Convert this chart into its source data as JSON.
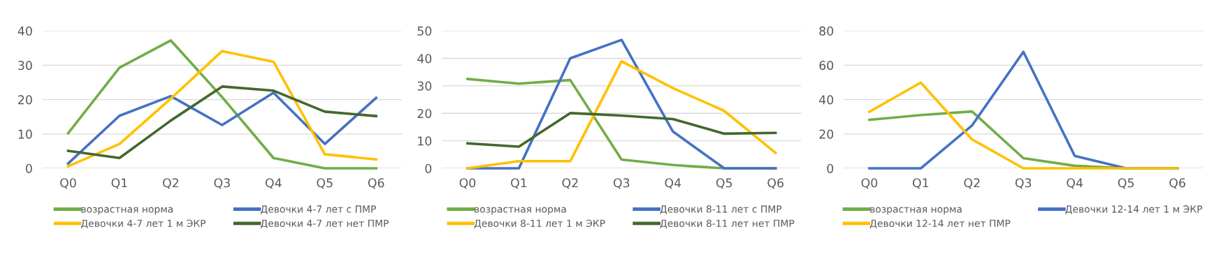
{
  "chart_data": [
    {
      "type": "line",
      "categories": [
        "Q0",
        "Q1",
        "Q2",
        "Q3",
        "Q4",
        "Q5",
        "Q6"
      ],
      "ylim": [
        0,
        40
      ],
      "yticks": [
        0,
        10,
        20,
        30,
        40
      ],
      "grid": "y",
      "legend": "bottom",
      "marker": "none",
      "line_style": "solid",
      "series": [
        {
          "name": "возрастная норма",
          "color": "#70ad47",
          "values": [
            10.2,
            29.3,
            37.2,
            20.7,
            3,
            0,
            0
          ]
        },
        {
          "name": "Девочки 4-7 лет с ПМР",
          "color": "#4472c4",
          "values": [
            1.4,
            15.3,
            21,
            12.6,
            22,
            7.1,
            20.5
          ]
        },
        {
          "name": "Девочки 4-7 лет 1 м ЭКР",
          "color": "#ffc000",
          "values": [
            0.6,
            7.1,
            20.3,
            34.1,
            31,
            4.1,
            2.6
          ]
        },
        {
          "name": "Девочки 4-7 лет нет ПМР",
          "color": "#43682b",
          "values": [
            5.1,
            3,
            13.9,
            23.8,
            22.6,
            16.5,
            15.2
          ]
        }
      ]
    },
    {
      "type": "line",
      "categories": [
        "Q0",
        "Q1",
        "Q2",
        "Q3",
        "Q4",
        "Q5",
        "Q6"
      ],
      "ylim": [
        0,
        50
      ],
      "yticks": [
        0,
        10,
        20,
        30,
        40,
        50
      ],
      "grid": "y",
      "legend": "bottom",
      "marker": "none",
      "line_style": "solid",
      "series": [
        {
          "name": "возрастная норма",
          "color": "#70ad47",
          "values": [
            32.5,
            30.8,
            32.1,
            3.2,
            1.2,
            0,
            0
          ]
        },
        {
          "name": "Девочки 8-11 лет с ПМР",
          "color": "#4472c4",
          "values": [
            0,
            0,
            40,
            46.7,
            13.4,
            0,
            0
          ]
        },
        {
          "name": "Девочки 8-11 лет 1 м ЭКР",
          "color": "#ffc000",
          "values": [
            0,
            2.6,
            2.6,
            38.9,
            29.2,
            20.9,
            5.6
          ]
        },
        {
          "name": "Девочки 8-11 лет нет ПМР",
          "color": "#43682b",
          "values": [
            9.1,
            7.9,
            20.1,
            19.2,
            17.9,
            12.6,
            12.9
          ]
        }
      ]
    },
    {
      "type": "line",
      "categories": [
        "Q0",
        "Q1",
        "Q2",
        "Q3",
        "Q4",
        "Q5",
        "Q6"
      ],
      "ylim": [
        0,
        80
      ],
      "yticks": [
        0,
        20,
        40,
        60,
        80
      ],
      "grid": "y",
      "legend": "bottom",
      "marker": "none",
      "line_style": "solid",
      "series": [
        {
          "name": "возрастная норма",
          "color": "#70ad47",
          "values": [
            28.2,
            31,
            33.1,
            5.9,
            1.5,
            0,
            0
          ]
        },
        {
          "name": "Девочки 12-14 лет 1 м ЭКР",
          "color": "#4472c4",
          "values": [
            0,
            0,
            25,
            67.8,
            7.2,
            0,
            0
          ]
        },
        {
          "name": "Девочки 12-14 лет нет ПМР",
          "color": "#ffc000",
          "values": [
            32.9,
            49.9,
            16.8,
            0,
            0,
            0,
            0
          ]
        }
      ]
    }
  ]
}
